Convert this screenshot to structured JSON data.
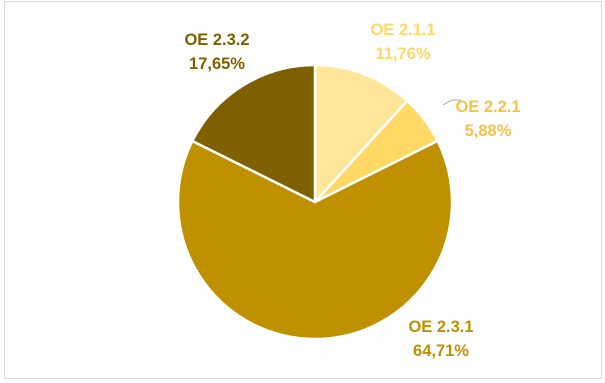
{
  "chart_data": {
    "type": "pie",
    "start_angle_deg": 0,
    "direction": "clockwise",
    "slices": [
      {
        "label": "OE 2.1.1",
        "value": 11.76,
        "value_text": "11,76%",
        "color": "#ffe699",
        "label_color": "#ffd966"
      },
      {
        "label": "OE 2.2.1",
        "value": 5.88,
        "value_text": "5,88%",
        "color": "#ffd966",
        "label_color": "#f4c24a"
      },
      {
        "label": "OE 2.3.1",
        "value": 64.71,
        "value_text": "64,71%",
        "color": "#bf9000",
        "label_color": "#bf9000"
      },
      {
        "label": "OE 2.3.2",
        "value": 17.65,
        "value_text": "17,65%",
        "color": "#7f6000",
        "label_color": "#7f6000"
      }
    ],
    "leader_line_color": "#a6a6a6"
  }
}
